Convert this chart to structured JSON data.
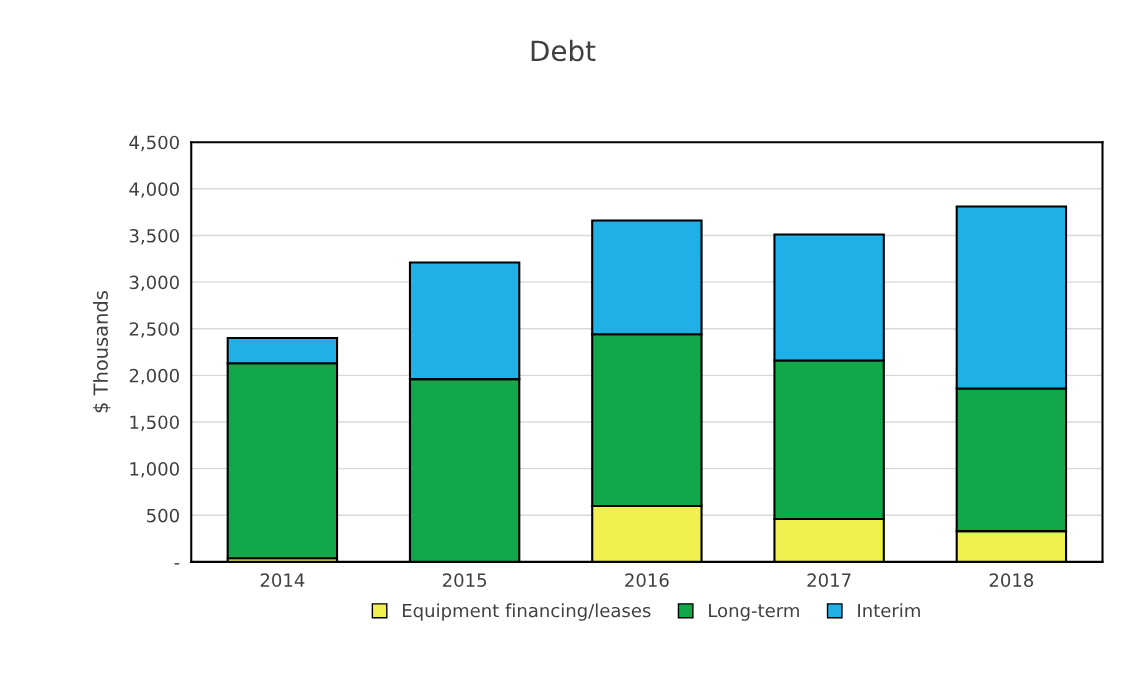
{
  "chart_data": {
    "type": "bar",
    "title": "Debt",
    "ylabel": "$ Thousands",
    "stacked": true,
    "categories": [
      "2014",
      "2015",
      "2016",
      "2017",
      "2018"
    ],
    "series": [
      {
        "name": "Equipment financing/leases",
        "color": "#f0f050",
        "values": [
          40,
          0,
          600,
          460,
          330
        ]
      },
      {
        "name": "Long-term",
        "color": "#12a84a",
        "values": [
          2090,
          1960,
          1840,
          1700,
          1530
        ]
      },
      {
        "name": "Interim",
        "color": "#1eb0e6",
        "values": [
          270,
          1250,
          1220,
          1350,
          1950
        ]
      }
    ],
    "ylim": [
      0,
      4500
    ],
    "yticks": [
      {
        "value": 0,
        "label": "-"
      },
      {
        "value": 500,
        "label": "500"
      },
      {
        "value": 1000,
        "label": "1,000"
      },
      {
        "value": 1500,
        "label": "1,500"
      },
      {
        "value": 2000,
        "label": "2,000"
      },
      {
        "value": 2500,
        "label": "2,500"
      },
      {
        "value": 3000,
        "label": "3,000"
      },
      {
        "value": 3500,
        "label": "3,500"
      },
      {
        "value": 4000,
        "label": "4,000"
      },
      {
        "value": 4500,
        "label": "4,500"
      }
    ],
    "grid": "y",
    "legend": "bottom"
  }
}
